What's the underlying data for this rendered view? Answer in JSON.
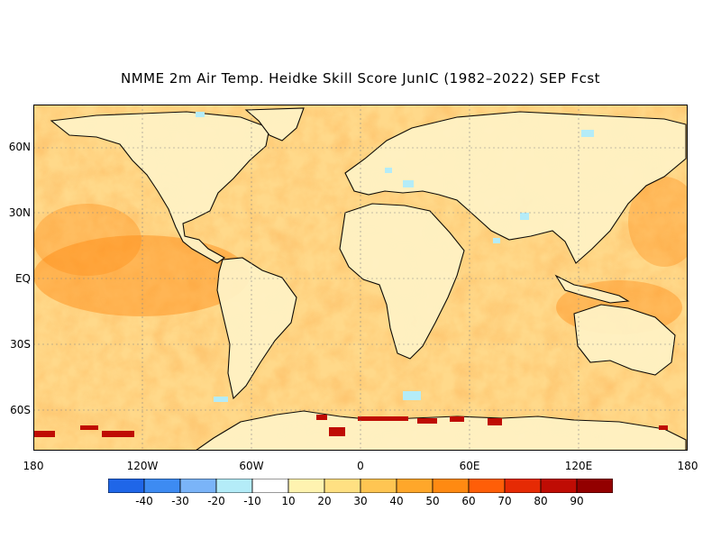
{
  "title": "NMME 2m Air Temp. Heidke Skill Score JunIC (1982–2022) SEP Fcst",
  "lat_labels": [
    "60N",
    "30N",
    "EQ",
    "30S",
    "60S"
  ],
  "lon_labels": [
    "180",
    "120W",
    "60W",
    "0",
    "60E",
    "120E",
    "180"
  ],
  "colorbar": {
    "colors": [
      "#1f66e8",
      "#3d8bf2",
      "#7ab4f8",
      "#b4ecf8",
      "#ffffff",
      "#fff3b0",
      "#ffe082",
      "#ffc552",
      "#ffa72a",
      "#ff8a12",
      "#ff5e08",
      "#e62a04",
      "#bf0c04",
      "#930000"
    ],
    "labels": [
      "-40",
      "-30",
      "-20",
      "-10",
      "10",
      "20",
      "30",
      "40",
      "50",
      "60",
      "70",
      "80",
      "90"
    ]
  }
}
